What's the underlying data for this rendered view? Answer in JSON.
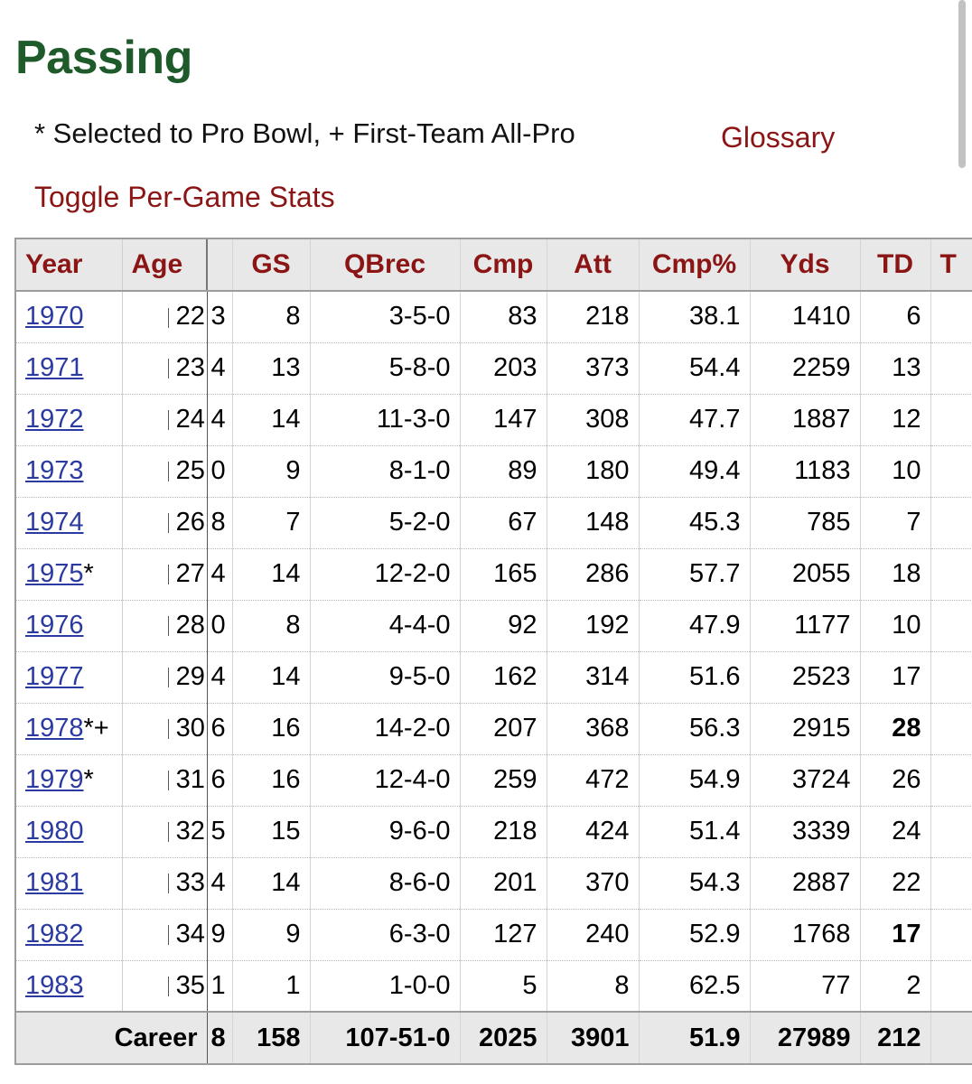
{
  "page": {
    "title": "Passing",
    "legend": "* Selected to Pro Bowl, + First-Team All-Pro",
    "glossary_label": "Glossary",
    "toggle_label": "Toggle Per-Game Stats"
  },
  "table": {
    "headers": [
      "Year",
      "Age",
      "GS",
      "QBrec",
      "Cmp",
      "Att",
      "Cmp%",
      "Yds",
      "TD",
      "T"
    ],
    "rows": [
      {
        "year": "1970",
        "mark": "",
        "age": "22",
        "x": "3",
        "gs": "8",
        "qbrec": "3-5-0",
        "cmp": "83",
        "att": "218",
        "cmp_pct": "38.1",
        "yds": "1410",
        "td": "6",
        "td_bold": false
      },
      {
        "year": "1971",
        "mark": "",
        "age": "23",
        "x": "4",
        "gs": "13",
        "qbrec": "5-8-0",
        "cmp": "203",
        "att": "373",
        "cmp_pct": "54.4",
        "yds": "2259",
        "td": "13",
        "td_bold": false
      },
      {
        "year": "1972",
        "mark": "",
        "age": "24",
        "x": "4",
        "gs": "14",
        "qbrec": "11-3-0",
        "cmp": "147",
        "att": "308",
        "cmp_pct": "47.7",
        "yds": "1887",
        "td": "12",
        "td_bold": false
      },
      {
        "year": "1973",
        "mark": "",
        "age": "25",
        "x": "0",
        "gs": "9",
        "qbrec": "8-1-0",
        "cmp": "89",
        "att": "180",
        "cmp_pct": "49.4",
        "yds": "1183",
        "td": "10",
        "td_bold": false
      },
      {
        "year": "1974",
        "mark": "",
        "age": "26",
        "x": "8",
        "gs": "7",
        "qbrec": "5-2-0",
        "cmp": "67",
        "att": "148",
        "cmp_pct": "45.3",
        "yds": "785",
        "td": "7",
        "td_bold": false
      },
      {
        "year": "1975",
        "mark": "*",
        "age": "27",
        "x": "4",
        "gs": "14",
        "qbrec": "12-2-0",
        "cmp": "165",
        "att": "286",
        "cmp_pct": "57.7",
        "yds": "2055",
        "td": "18",
        "td_bold": false
      },
      {
        "year": "1976",
        "mark": "",
        "age": "28",
        "x": "0",
        "gs": "8",
        "qbrec": "4-4-0",
        "cmp": "92",
        "att": "192",
        "cmp_pct": "47.9",
        "yds": "1177",
        "td": "10",
        "td_bold": false
      },
      {
        "year": "1977",
        "mark": "",
        "age": "29",
        "x": "4",
        "gs": "14",
        "qbrec": "9-5-0",
        "cmp": "162",
        "att": "314",
        "cmp_pct": "51.6",
        "yds": "2523",
        "td": "17",
        "td_bold": false
      },
      {
        "year": "1978",
        "mark": "*+",
        "age": "30",
        "x": "6",
        "gs": "16",
        "qbrec": "14-2-0",
        "cmp": "207",
        "att": "368",
        "cmp_pct": "56.3",
        "yds": "2915",
        "td": "28",
        "td_bold": true
      },
      {
        "year": "1979",
        "mark": "*",
        "age": "31",
        "x": "6",
        "gs": "16",
        "qbrec": "12-4-0",
        "cmp": "259",
        "att": "472",
        "cmp_pct": "54.9",
        "yds": "3724",
        "td": "26",
        "td_bold": false
      },
      {
        "year": "1980",
        "mark": "",
        "age": "32",
        "x": "5",
        "gs": "15",
        "qbrec": "9-6-0",
        "cmp": "218",
        "att": "424",
        "cmp_pct": "51.4",
        "yds": "3339",
        "td": "24",
        "td_bold": false
      },
      {
        "year": "1981",
        "mark": "",
        "age": "33",
        "x": "4",
        "gs": "14",
        "qbrec": "8-6-0",
        "cmp": "201",
        "att": "370",
        "cmp_pct": "54.3",
        "yds": "2887",
        "td": "22",
        "td_bold": false
      },
      {
        "year": "1982",
        "mark": "",
        "age": "34",
        "x": "9",
        "gs": "9",
        "qbrec": "6-3-0",
        "cmp": "127",
        "att": "240",
        "cmp_pct": "52.9",
        "yds": "1768",
        "td": "17",
        "td_bold": true
      },
      {
        "year": "1983",
        "mark": "",
        "age": "35",
        "x": "1",
        "gs": "1",
        "qbrec": "1-0-0",
        "cmp": "5",
        "att": "8",
        "cmp_pct": "62.5",
        "yds": "77",
        "td": "2",
        "td_bold": false
      }
    ],
    "career": {
      "label": "Career",
      "x": "8",
      "gs": "158",
      "qbrec": "107-51-0",
      "cmp": "2025",
      "att": "3901",
      "cmp_pct": "51.9",
      "yds": "27989",
      "td": "212"
    }
  }
}
